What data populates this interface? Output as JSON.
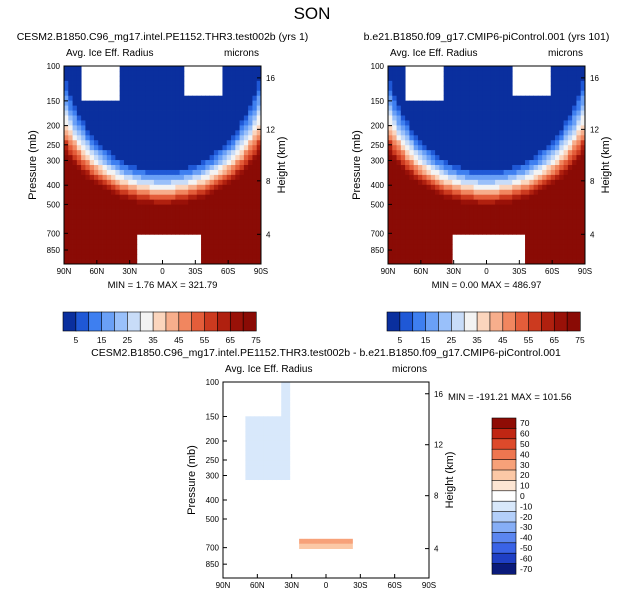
{
  "figure": {
    "season": "SON"
  },
  "chart_data": [
    {
      "type": "heatmap",
      "panel": "top-left",
      "title": "CESM2.B1850.C96_mg17.intel.PE1152.THR3.test002b (yrs 1)",
      "left_string": "Avg. Ice Eff. Radius",
      "right_string": "microns",
      "ylabel": "Pressure (mb)",
      "ylabel_right": "Height (km)",
      "xticks": [
        "90N",
        "60N",
        "30N",
        "0",
        "30S",
        "60S",
        "90S"
      ],
      "yticks": [
        "100",
        "150",
        "200",
        "250",
        "300",
        "400",
        "500",
        "700",
        "850"
      ],
      "height_ticks": [
        "16",
        "12",
        "8",
        "4"
      ],
      "x_range": [
        90,
        -90
      ],
      "y_range": [
        1000,
        100
      ],
      "min": 1.76,
      "max": 321.79,
      "stats_text": "MIN =   1.76   MAX = 321.79",
      "field": "abs",
      "colorbar_labels": [
        "5",
        "15",
        "25",
        "35",
        "45",
        "55",
        "65",
        "75"
      ]
    },
    {
      "type": "heatmap",
      "panel": "top-right",
      "title": "b.e21.B1850.f09_g17.CMIP6-piControl.001 (yrs 101)",
      "left_string": "Avg. Ice Eff. Radius",
      "right_string": "microns",
      "ylabel": "Pressure (mb)",
      "ylabel_right": "Height (km)",
      "xticks": [
        "90N",
        "60N",
        "30N",
        "0",
        "30S",
        "60S",
        "90S"
      ],
      "yticks": [
        "100",
        "150",
        "200",
        "250",
        "300",
        "400",
        "500",
        "700",
        "850"
      ],
      "height_ticks": [
        "16",
        "12",
        "8",
        "4"
      ],
      "x_range": [
        90,
        -90
      ],
      "y_range": [
        1000,
        100
      ],
      "min": 0.0,
      "max": 486.97,
      "stats_text": "MIN =   0.00   MAX = 486.97",
      "field": "abs",
      "colorbar_labels": [
        "5",
        "15",
        "25",
        "35",
        "45",
        "55",
        "65",
        "75"
      ]
    },
    {
      "type": "heatmap",
      "panel": "bottom",
      "title": "CESM2.B1850.C96_mg17.intel.PE1152.THR3.test002b - b.e21.B1850.f09_g17.CMIP6-piControl.001",
      "left_string": "Avg. Ice Eff. Radius",
      "right_string": "microns",
      "ylabel": "Pressure (mb)",
      "ylabel_right": "Height (km)",
      "xticks": [
        "90N",
        "60N",
        "30N",
        "0",
        "30S",
        "60S",
        "90S"
      ],
      "yticks": [
        "100",
        "150",
        "200",
        "250",
        "300",
        "400",
        "500",
        "700",
        "850"
      ],
      "height_ticks": [
        "16",
        "12",
        "8",
        "4"
      ],
      "x_range": [
        90,
        -90
      ],
      "y_range": [
        1000,
        100
      ],
      "min": -191.21,
      "max": 101.56,
      "stats_text": "MIN = -191.21  MAX = 101.56",
      "field": "diff",
      "colorbar_labels": [
        "70",
        "60",
        "50",
        "40",
        "30",
        "20",
        "10",
        "0",
        "-10",
        "-20",
        "-30",
        "-40",
        "-50",
        "-60",
        "-70"
      ]
    }
  ],
  "colors": {
    "abs_scale": [
      "#0a2f9e",
      "#1f58d6",
      "#3e7ff0",
      "#6aa0f6",
      "#99c0fa",
      "#c8dcf8",
      "#f3f3f3",
      "#fbd5bd",
      "#f7ae8c",
      "#f1865f",
      "#e45d3a",
      "#cc3a1f",
      "#b0200f",
      "#991108",
      "#8a0b05"
    ],
    "diff_scale": [
      "#0a1a7a",
      "#1f3fc4",
      "#3a63e6",
      "#5b86f0",
      "#86aef6",
      "#b3cffa",
      "#d8e8fb",
      "#ffffff",
      "#fde6d4",
      "#fbc8a6",
      "#f7a179",
      "#ee7650",
      "#dd4a2b",
      "#c02613",
      "#8f0c05"
    ]
  }
}
